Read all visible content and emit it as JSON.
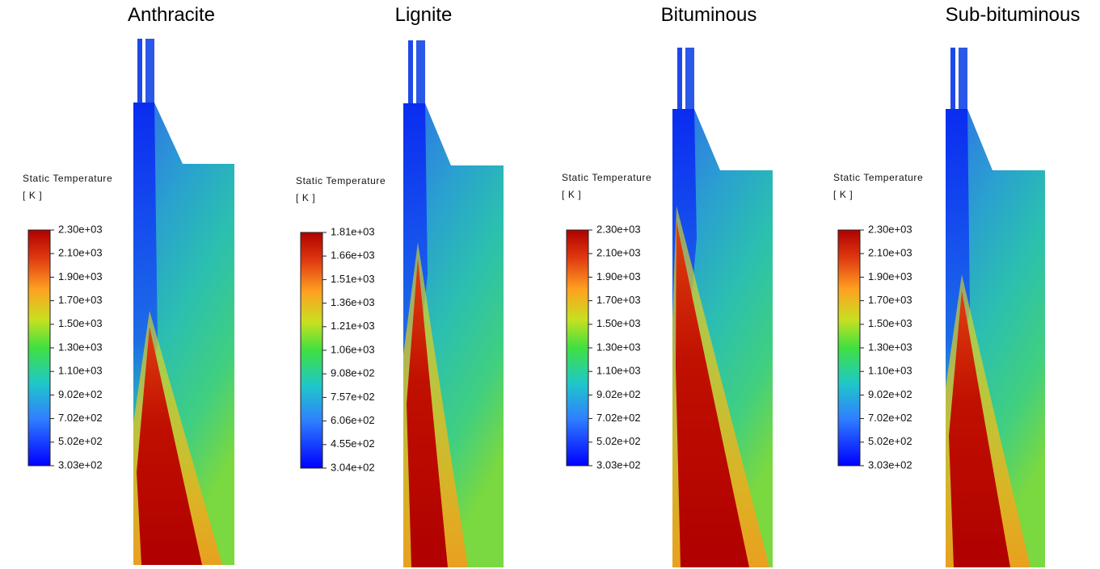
{
  "panels": [
    {
      "title": "Anthracite",
      "legend": {
        "title": "Static Temperature",
        "unit": "[ K ]",
        "labels": [
          "2.30e+03",
          "2.10e+03",
          "1.90e+03",
          "1.70e+03",
          "1.50e+03",
          "1.30e+03",
          "1.10e+03",
          "9.02e+02",
          "7.02e+02",
          "5.02e+02",
          "3.03e+02"
        ]
      }
    },
    {
      "title": "Lignite",
      "legend": {
        "title": "Static Temperature",
        "unit": "[ K ]",
        "labels": [
          "1.81e+03",
          "1.66e+03",
          "1.51e+03",
          "1.36e+03",
          "1.21e+03",
          "1.06e+03",
          "9.08e+02",
          "7.57e+02",
          "6.06e+02",
          "4.55e+02",
          "3.04e+02"
        ]
      }
    },
    {
      "title": "Bituminous",
      "legend": {
        "title": "Static Temperature",
        "unit": "[ K ]",
        "labels": [
          "2.30e+03",
          "2.10e+03",
          "1.90e+03",
          "1.70e+03",
          "1.50e+03",
          "1.30e+03",
          "1.10e+03",
          "9.02e+02",
          "7.02e+02",
          "5.02e+02",
          "3.03e+02"
        ]
      }
    },
    {
      "title": "Sub-bituminous",
      "legend": {
        "title": "Static Temperature",
        "unit": "[ K ]",
        "labels": [
          "2.30e+03",
          "2.10e+03",
          "1.90e+03",
          "1.70e+03",
          "1.50e+03",
          "1.30e+03",
          "1.10e+03",
          "9.02e+02",
          "7.02e+02",
          "5.02e+02",
          "3.03e+02"
        ]
      }
    }
  ]
}
